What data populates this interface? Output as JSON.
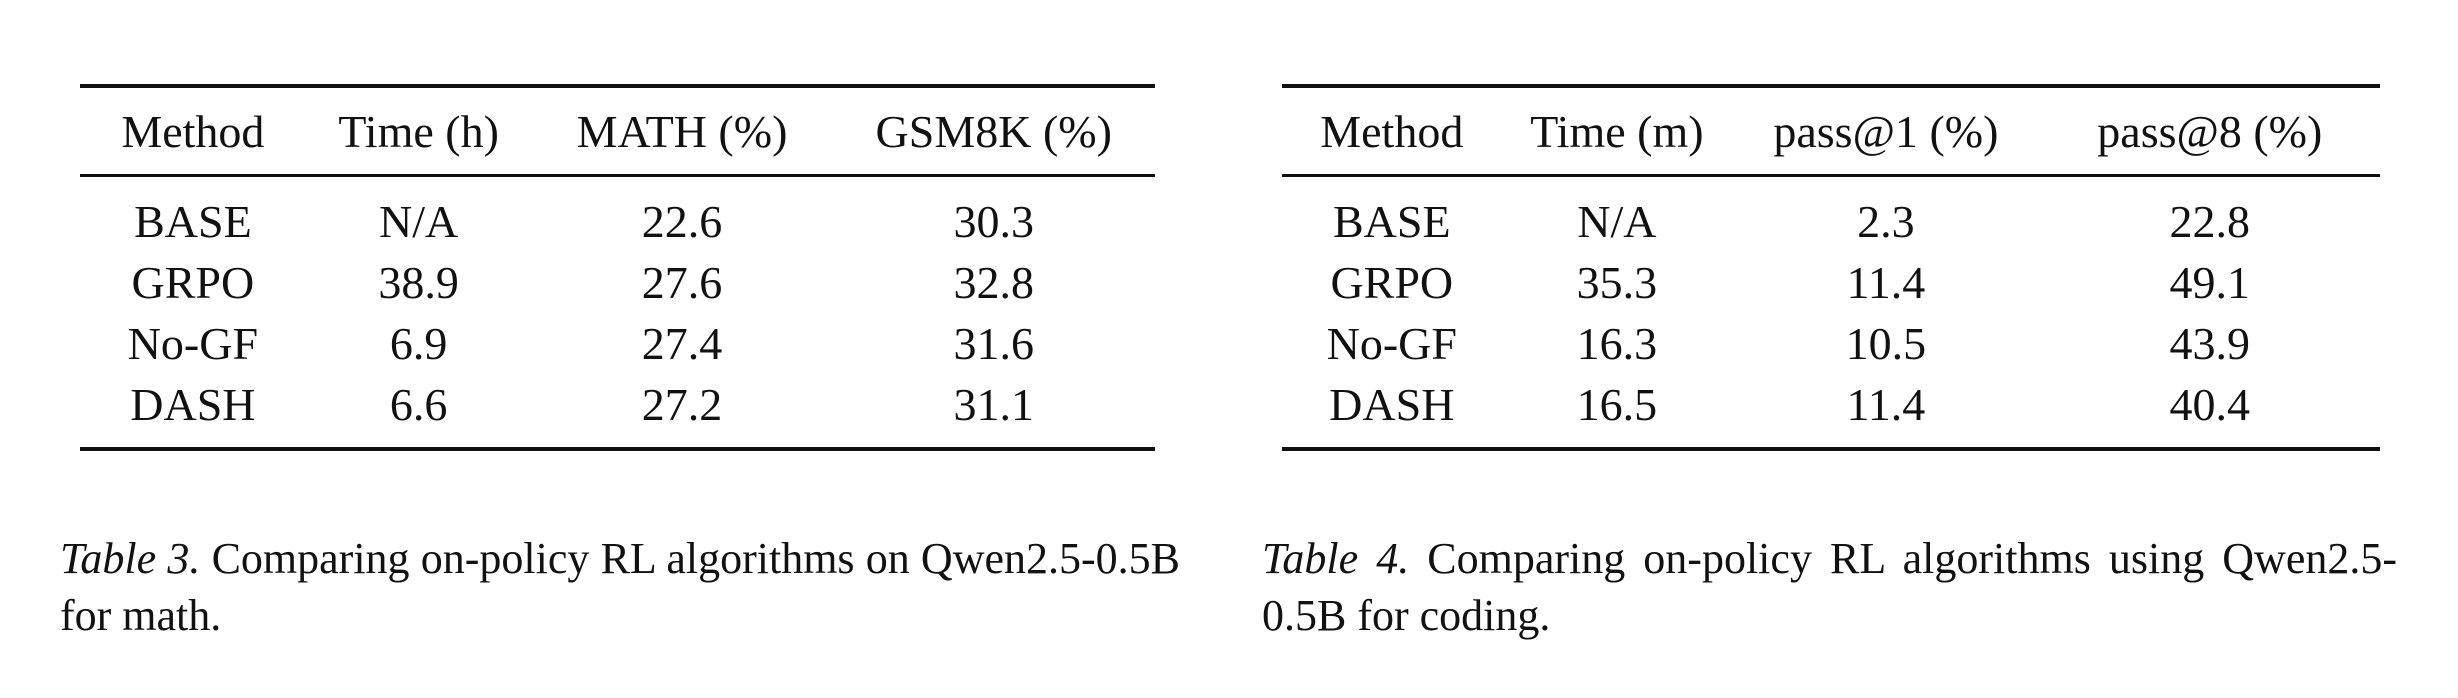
{
  "table3": {
    "headers": [
      "Method",
      "Time (h)",
      "MATH (%)",
      "GSM8K (%)"
    ],
    "rows": [
      [
        "BASE",
        "N/A",
        "22.6",
        "30.3"
      ],
      [
        "GRPO",
        "38.9",
        "27.6",
        "32.8"
      ],
      [
        "No-GF",
        "6.9",
        "27.4",
        "31.6"
      ],
      [
        "DASH",
        "6.6",
        "27.2",
        "31.1"
      ]
    ],
    "caption_label": "Table 3.",
    "caption_text": " Comparing on-policy RL algorithms on Qwen2.5-0.5B for math."
  },
  "table4": {
    "headers": [
      "Method",
      "Time (m)",
      "pass@1 (%)",
      "pass@8 (%)"
    ],
    "rows": [
      [
        "BASE",
        "N/A",
        "2.3",
        "22.8"
      ],
      [
        "GRPO",
        "35.3",
        "11.4",
        "49.1"
      ],
      [
        "No-GF",
        "16.3",
        "10.5",
        "43.9"
      ],
      [
        "DASH",
        "16.5",
        "11.4",
        "40.4"
      ]
    ],
    "caption_label": "Table 4.",
    "caption_text": " Comparing on-policy RL algorithms using Qwen2.5-0.5B for coding."
  }
}
